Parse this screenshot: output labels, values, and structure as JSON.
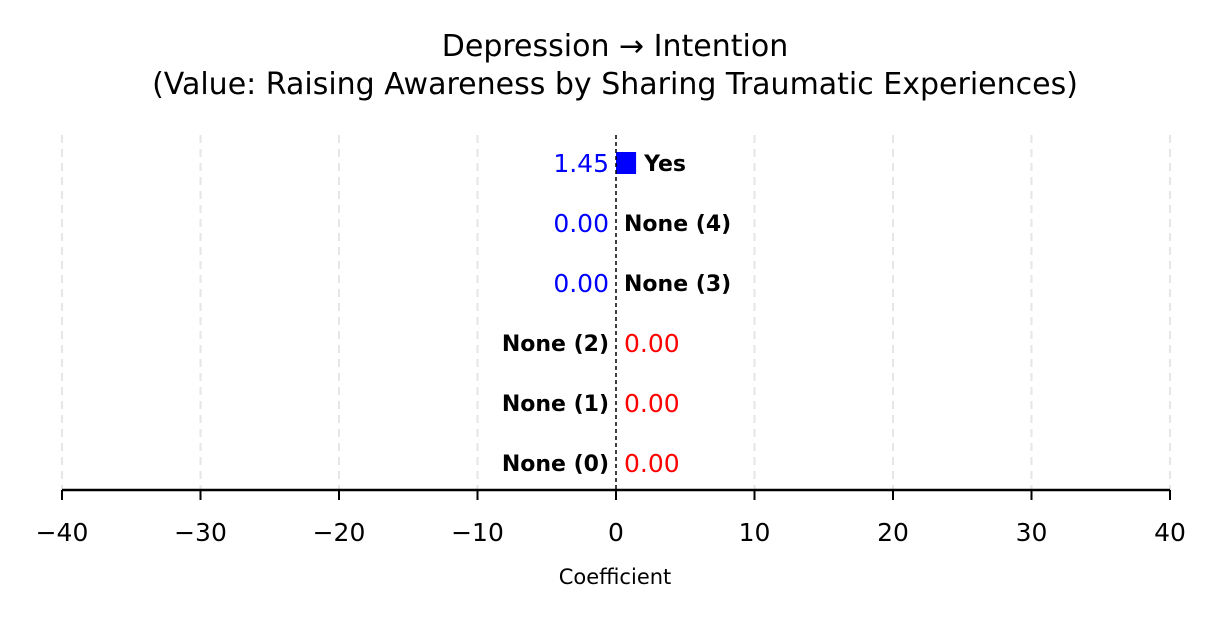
{
  "chart_data": {
    "type": "bar",
    "orientation": "horizontal",
    "title": "Depression → Intention\n(Value: Raising Awareness by Sharing Traumatic Experiences)",
    "xlabel": "Coefficient",
    "ylabel": "",
    "xlim": [
      -40,
      40
    ],
    "xticks": [
      -40,
      -30,
      -20,
      -10,
      0,
      10,
      20,
      30,
      40
    ],
    "xtick_labels": [
      "−40",
      "−30",
      "−20",
      "−10",
      "0",
      "10",
      "20",
      "30",
      "40"
    ],
    "grid": "x, dashed",
    "categories": [
      "Yes",
      "None (4)",
      "None (3)",
      "None (2)",
      "None (1)",
      "None (0)"
    ],
    "values": [
      1.45,
      0.0,
      0.0,
      0.0,
      0.0,
      0.0
    ],
    "value_labels": [
      "1.45",
      "0.00",
      "0.00",
      "0.00",
      "0.00",
      "0.00"
    ],
    "label_sides": [
      "right",
      "right",
      "right",
      "left",
      "left",
      "left"
    ],
    "value_colors": [
      "#0000ff",
      "#0000ff",
      "#0000ff",
      "#ff0000",
      "#ff0000",
      "#ff0000"
    ],
    "bar_color_positive": "#0000ff",
    "bar_color_negative": "#ff0000",
    "zero_line": "dashed black"
  }
}
